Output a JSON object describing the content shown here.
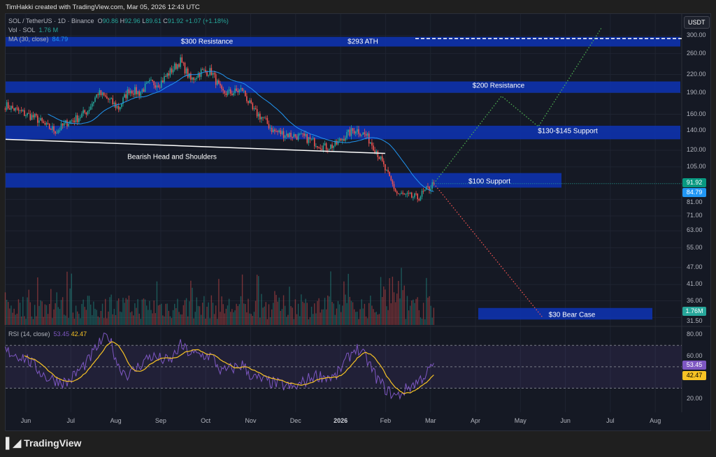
{
  "credit": "TimHakki created with TradingView.com, Mar 05, 2026 12:43 UTC",
  "legend": {
    "symbol": "SOL / TetherUS · 1D · Binance",
    "o_label": "O",
    "o": "90.86",
    "h_label": "H",
    "h": "92.96",
    "l_label": "L",
    "l": "89.61",
    "c_label": "C",
    "c": "91.92",
    "change": "+1.07 (+1.18%)",
    "vol_label": "Vol · SOL",
    "vol": "1.76 M",
    "ma_label": "MA (30, close)",
    "ma": "84.79",
    "rsi_label": "RSI (14, close)",
    "rsi": "53.45",
    "rsi_ma": "42.47"
  },
  "currency_button": "USDT",
  "brand": "TradingView",
  "colors": {
    "up": "#26a69a",
    "down": "#ef5350",
    "ma": "#2196f3",
    "zone": "#0d34b5",
    "rsi": "#7e57c2",
    "rsi_ma": "#f7c325",
    "bull_path": "#4caf50",
    "bear_path": "#ef5350"
  },
  "chart_data": {
    "type": "candlestick",
    "y_scale": "log",
    "ylim": [
      31.5,
      300
    ],
    "y_ticks": [
      "300.00",
      "260.00",
      "220.00",
      "190.00",
      "160.00",
      "140.00",
      "120.00",
      "105.00",
      "81.00",
      "71.00",
      "63.00",
      "55.00",
      "47.00",
      "41.00",
      "36.00",
      "31.50"
    ],
    "x_ticks": [
      "Jun",
      "Jul",
      "Aug",
      "Sep",
      "Oct",
      "Nov",
      "Dec",
      "2026",
      "Feb",
      "Mar",
      "Apr",
      "May",
      "Jun",
      "Jul",
      "Aug"
    ],
    "price_closes_weekly": [
      [
        "2025-05-18",
        172
      ],
      [
        "2025-06-01",
        160
      ],
      [
        "2025-06-08",
        155
      ],
      [
        "2025-06-15",
        145
      ],
      [
        "2025-06-22",
        140
      ],
      [
        "2025-06-29",
        150
      ],
      [
        "2025-07-06",
        155
      ],
      [
        "2025-07-13",
        165
      ],
      [
        "2025-07-20",
        190
      ],
      [
        "2025-07-27",
        180
      ],
      [
        "2025-08-03",
        168
      ],
      [
        "2025-08-10",
        195
      ],
      [
        "2025-08-17",
        190
      ],
      [
        "2025-08-24",
        205
      ],
      [
        "2025-08-31",
        205
      ],
      [
        "2025-09-07",
        225
      ],
      [
        "2025-09-14",
        245
      ],
      [
        "2025-09-21",
        210
      ],
      [
        "2025-09-28",
        225
      ],
      [
        "2025-10-05",
        225
      ],
      [
        "2025-10-12",
        190
      ],
      [
        "2025-10-19",
        190
      ],
      [
        "2025-10-26",
        195
      ],
      [
        "2025-11-02",
        165
      ],
      [
        "2025-11-09",
        155
      ],
      [
        "2025-11-16",
        140
      ],
      [
        "2025-11-23",
        137
      ],
      [
        "2025-11-30",
        135
      ],
      [
        "2025-12-07",
        133
      ],
      [
        "2025-12-14",
        128
      ],
      [
        "2025-12-21",
        123
      ],
      [
        "2025-12-28",
        125
      ],
      [
        "2026-01-04",
        135
      ],
      [
        "2026-01-11",
        142
      ],
      [
        "2026-01-18",
        135
      ],
      [
        "2026-01-25",
        120
      ],
      [
        "2026-02-01",
        100
      ],
      [
        "2026-02-08",
        85
      ],
      [
        "2026-02-15",
        83
      ],
      [
        "2026-02-22",
        82
      ],
      [
        "2026-03-01",
        88
      ],
      [
        "2026-03-05",
        91.92
      ]
    ],
    "last_price": "91.92",
    "ma_value": "84.79",
    "volume_last": "1.76M",
    "rsi": {
      "ylim": [
        0,
        100
      ],
      "y_ticks": [
        "80.00",
        "60.00",
        "20.00"
      ],
      "bands": [
        30,
        50,
        70
      ],
      "value": "53.45",
      "ma_value": "42.47",
      "weekly": [
        [
          "2025-05-18",
          65
        ],
        [
          "2025-06-01",
          58
        ],
        [
          "2025-06-15",
          40
        ],
        [
          "2025-06-29",
          35
        ],
        [
          "2025-07-13",
          55
        ],
        [
          "2025-07-20",
          70
        ],
        [
          "2025-07-27",
          80
        ],
        [
          "2025-08-03",
          50
        ],
        [
          "2025-08-10",
          42
        ],
        [
          "2025-08-24",
          60
        ],
        [
          "2025-09-07",
          55
        ],
        [
          "2025-09-14",
          70
        ],
        [
          "2025-09-21",
          62
        ],
        [
          "2025-10-05",
          60
        ],
        [
          "2025-10-12",
          45
        ],
        [
          "2025-10-26",
          52
        ],
        [
          "2025-11-02",
          40
        ],
        [
          "2025-11-16",
          35
        ],
        [
          "2025-11-30",
          30
        ],
        [
          "2025-12-14",
          42
        ],
        [
          "2025-12-28",
          40
        ],
        [
          "2026-01-04",
          55
        ],
        [
          "2026-01-11",
          68
        ],
        [
          "2026-01-18",
          58
        ],
        [
          "2026-01-25",
          40
        ],
        [
          "2026-02-01",
          28
        ],
        [
          "2026-02-08",
          22
        ],
        [
          "2026-02-15",
          30
        ],
        [
          "2026-02-22",
          36
        ],
        [
          "2026-03-01",
          45
        ],
        [
          "2026-03-05",
          53.45
        ]
      ]
    },
    "zones": [
      {
        "label": "$300 Resistance",
        "low": 275,
        "high": 297,
        "extended": true
      },
      {
        "label": "$200 Resistance",
        "low": 190,
        "high": 208,
        "extended": true
      },
      {
        "label": "$130-$145 Support",
        "low": 131,
        "high": 146,
        "extended": true
      },
      {
        "label": "$100 Support",
        "low": 89,
        "high": 100,
        "extended": false
      },
      {
        "label": "$30 Bear Case",
        "low": 31,
        "high": 34,
        "extended": false
      }
    ],
    "ath_label": "$293 ATH",
    "ath_price": 293,
    "pattern": {
      "label": "Bearish Head and Shoulders",
      "from": [
        "2025-05-18",
        131
      ],
      "to": [
        "2026-01-31",
        117
      ]
    },
    "bull_path": [
      [
        "2026-03-05",
        91.92
      ],
      [
        "2026-04-20",
        185
      ],
      [
        "2026-05-15",
        145
      ],
      [
        "2026-06-27",
        320
      ]
    ],
    "bear_path": [
      [
        "2026-03-05",
        91.92
      ],
      [
        "2026-05-18",
        31.5
      ]
    ]
  }
}
